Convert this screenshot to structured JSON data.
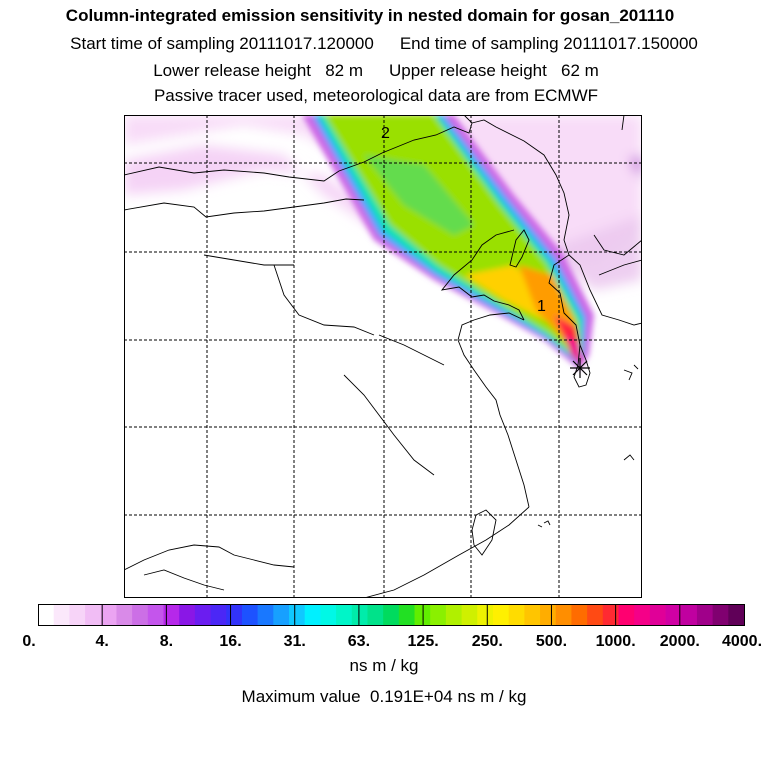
{
  "header": {
    "title": "Column-integrated emission sensitivity in nested domain for gosan_201110",
    "start": "Start time of sampling 20111017.120000",
    "end": "End time of sampling 20111017.150000",
    "lower": "Lower release height   82 m",
    "upper": "Upper release height   62 m",
    "tracer": "Passive tracer used, meteorological data are from ECMWF"
  },
  "map": {
    "labels": [
      {
        "text": "2"
      },
      {
        "text": "1"
      }
    ],
    "release_marker": "asterisk-icon"
  },
  "colorbar": {
    "ticks": [
      "0.",
      "4.",
      "8.",
      "16.",
      "31.",
      "63.",
      "125.",
      "250.",
      "500.",
      "1000.",
      "2000.",
      "4000."
    ],
    "colors": [
      "#ffffff",
      "#fbe8fb",
      "#f7d4f8",
      "#f1bdf5",
      "#eba4f2",
      "#d98ae8",
      "#cc6fe6",
      "#c455ec",
      "#b628ea",
      "#8a17e6",
      "#6b1df0",
      "#4b27f6",
      "#3233fa",
      "#1d52ff",
      "#1978ff",
      "#17a0ff",
      "#10c8ff",
      "#00f0ff",
      "#00f8e6",
      "#00f5c8",
      "#00ecaa",
      "#00e28a",
      "#00db5e",
      "#22e023",
      "#61ee00",
      "#8af000",
      "#b0f000",
      "#cff000",
      "#eef200",
      "#fff000",
      "#ffdc00",
      "#ffc500",
      "#ffad00",
      "#ff8e00",
      "#ff6c00",
      "#ff4a14",
      "#ff2a32",
      "#ff0070",
      "#f50088",
      "#e00098",
      "#d000a4",
      "#c000a0",
      "#a0008a",
      "#800070",
      "#600058"
    ],
    "units": "ns m / kg",
    "max_value": "Maximum value  0.191E+04 ns m / kg"
  }
}
